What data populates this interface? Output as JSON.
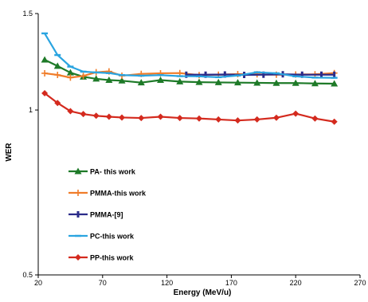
{
  "chart_data": {
    "type": "line",
    "xlabel": "Energy (MeV/u)",
    "ylabel": "WER",
    "xlim": [
      20,
      270
    ],
    "ylim": [
      0.5,
      1.5
    ],
    "x_ticks": [
      20,
      70,
      120,
      170,
      220,
      270
    ],
    "y_ticks": [
      0.5,
      1,
      1.5
    ],
    "x_tick_labels": [
      "20",
      "70",
      "120",
      "170",
      "220",
      "270"
    ],
    "y_tick_labels": [
      "0.5",
      "1",
      "1.5"
    ],
    "y_scale": "log",
    "grid": false,
    "legend_position": "left-lower inside plot",
    "series": [
      {
        "name": "PA- this work",
        "color": "#1e7a28",
        "marker": "triangle",
        "x": [
          25,
          35,
          45,
          55,
          65,
          75,
          85,
          100,
          115,
          130,
          145,
          160,
          175,
          190,
          205,
          220,
          235,
          250
        ],
        "y": [
          1.235,
          1.203,
          1.17,
          1.15,
          1.14,
          1.134,
          1.131,
          1.122,
          1.134,
          1.127,
          1.124,
          1.123,
          1.122,
          1.121,
          1.12,
          1.12,
          1.118,
          1.117
        ]
      },
      {
        "name": "PMMA-this work",
        "color": "#f07d2a",
        "marker": "plus",
        "x": [
          25,
          35,
          45,
          55,
          65,
          75,
          85,
          100,
          115,
          130,
          145,
          160,
          175,
          190,
          205,
          220,
          235,
          250
        ],
        "y": [
          1.167,
          1.159,
          1.146,
          1.154,
          1.172,
          1.176,
          1.155,
          1.164,
          1.167,
          1.168,
          1.158,
          1.16,
          1.163,
          1.162,
          1.16,
          1.161,
          1.162,
          1.168
        ]
      },
      {
        "name": "PMMA-[9]",
        "color": "#2b2c8a",
        "marker": "bar",
        "x": [
          135,
          150,
          165,
          180,
          195,
          210,
          225,
          240,
          250
        ],
        "y": [
          1.16,
          1.16,
          1.161,
          1.159,
          1.16,
          1.162,
          1.16,
          1.16,
          1.16
        ]
      },
      {
        "name": "PC-this work",
        "color": "#2aa4e0",
        "marker": "dash",
        "x": [
          25,
          35,
          45,
          55,
          65,
          75,
          85,
          100,
          115,
          130,
          145,
          160,
          175,
          190,
          205,
          220,
          235,
          250
        ],
        "y": [
          1.38,
          1.26,
          1.2,
          1.175,
          1.171,
          1.168,
          1.158,
          1.155,
          1.158,
          1.153,
          1.152,
          1.148,
          1.156,
          1.172,
          1.167,
          1.152,
          1.146,
          1.145
        ]
      },
      {
        "name": "PP-this work",
        "color": "#d42a1e",
        "marker": "diamond",
        "x": [
          25,
          35,
          45,
          55,
          65,
          75,
          85,
          100,
          115,
          130,
          145,
          160,
          175,
          190,
          205,
          220,
          235,
          250
        ],
        "y": [
          1.073,
          1.03,
          0.995,
          0.983,
          0.976,
          0.972,
          0.969,
          0.967,
          0.972,
          0.967,
          0.965,
          0.961,
          0.957,
          0.961,
          0.968,
          0.985,
          0.965,
          0.952
        ]
      }
    ]
  }
}
